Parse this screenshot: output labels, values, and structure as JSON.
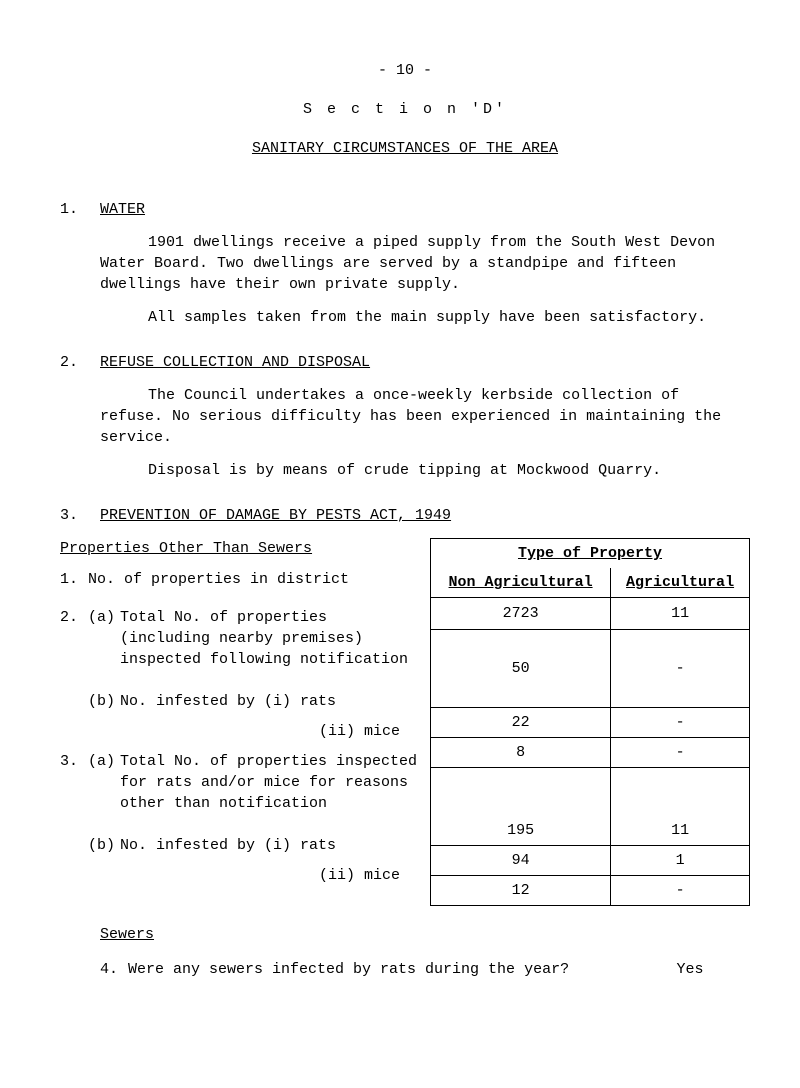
{
  "page_number": "- 10 -",
  "section_label": "S e c t i o n  'D'",
  "section_title": "SANITARY CIRCUMSTANCES OF THE AREA",
  "h1": {
    "num": "1.",
    "title": "WATER"
  },
  "p1": "1901 dwellings receive a piped supply from the South West Devon Water Board.  Two dwellings are served by a standpipe and fifteen dwellings have their own private supply.",
  "p2": "All samples taken from the main supply have been satisfactory.",
  "h2": {
    "num": "2.",
    "title": "REFUSE COLLECTION AND DISPOSAL"
  },
  "p3": "The Council undertakes a once-weekly kerbside collection of refuse.  No serious difficulty has been experienced in maintaining the service.",
  "p4": "Disposal is by means of crude tipping at Mockwood Quarry.",
  "h3": {
    "num": "3.",
    "title": "PREVENTION OF DAMAGE BY PESTS ACT, 1949"
  },
  "properties_heading": "Properties Other Than Sewers",
  "table_header": {
    "top": "Type of Property",
    "col1": "Non Agricultural",
    "col2": "Agricultural"
  },
  "items": {
    "i1": {
      "n": "1.",
      "text": "No. of properties in district"
    },
    "i2a": {
      "n": "2.",
      "sub": "(a)",
      "text": "Total No. of properties (including nearby premises) inspected following notification"
    },
    "i2b": {
      "sub": "(b)",
      "text": "No. infested by   (i) rats"
    },
    "i2b2": {
      "text": "(ii) mice"
    },
    "i3a": {
      "n": "3.",
      "sub": "(a)",
      "text": "Total No. of properties inspected for rats and/or mice for reasons other than notification"
    },
    "i3b": {
      "sub": "(b)",
      "text": "No. infested by   (i) rats"
    },
    "i3b2": {
      "text": "(ii) mice"
    }
  },
  "table_rows": [
    {
      "c1": "2723",
      "c2": "11"
    },
    {
      "c1": "50",
      "c2": "-"
    },
    {
      "c1": "22",
      "c2": "-"
    },
    {
      "c1": "8",
      "c2": "-"
    },
    {
      "c1": "195",
      "c2": "11"
    },
    {
      "c1": "94",
      "c2": "1"
    },
    {
      "c1": "12",
      "c2": "-"
    }
  ],
  "row_heights": [
    "32px",
    "78px",
    "24px",
    "24px",
    "78px",
    "24px",
    "24px"
  ],
  "sewers_heading": "Sewers",
  "q4": {
    "n": "4.",
    "text": "Were any sewers infected by rats during the year?",
    "ans": "Yes"
  }
}
